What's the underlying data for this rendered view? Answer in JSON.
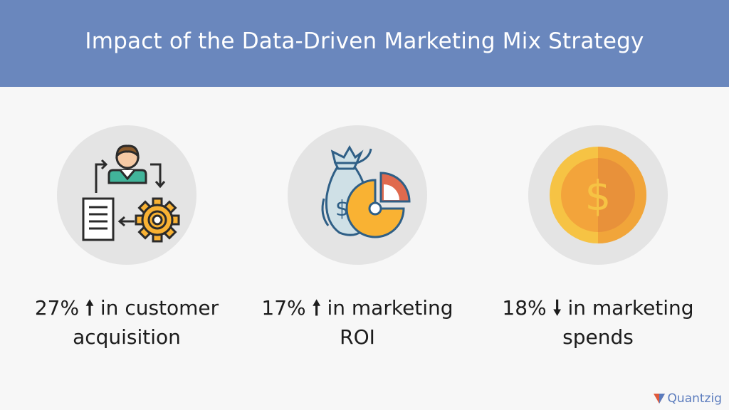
{
  "header": {
    "title": "Impact of the Data-Driven Marketing Mix Strategy"
  },
  "stats": [
    {
      "icon": "customer-acquisition-icon",
      "value": "27%",
      "arrow": "🠕",
      "line1": "in customer",
      "line2": "acquisition"
    },
    {
      "icon": "money-bag-pie-chart-icon",
      "value": "17%",
      "arrow": "🠕",
      "line1": "in marketing",
      "line2": "ROI"
    },
    {
      "icon": "gold-coin-icon",
      "value": "18%",
      "arrow": "🠗",
      "line1": "in marketing",
      "line2": "spends"
    }
  ],
  "brand": {
    "name": "Quantzig"
  },
  "colors": {
    "banner": "#6a87bd",
    "background": "#f7f7f7",
    "circle": "#e4e4e4",
    "coin": "#f6b93b",
    "pie_red": "#e06a4e",
    "gear": "#f9b233"
  }
}
